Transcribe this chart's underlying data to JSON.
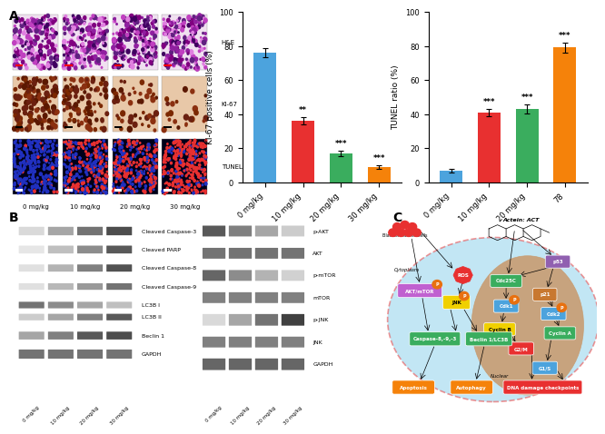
{
  "ki67_values": [
    76,
    36,
    17,
    9
  ],
  "ki67_errors": [
    2.5,
    2.0,
    1.5,
    1.2
  ],
  "ki67_labels": [
    "0 mg/kg",
    "10 mg/kg",
    "20 mg/kg",
    "30 mg/kg"
  ],
  "ki67_colors": [
    "#4ca3dd",
    "#e83030",
    "#3aad5e",
    "#f5820a"
  ],
  "ki67_ylabel": "KI-67 positive cells (%)",
  "ki67_sig": [
    "",
    "**",
    "***",
    "***"
  ],
  "ki67_ylim": [
    0,
    100
  ],
  "tunel_values": [
    7,
    41,
    43,
    79
  ],
  "tunel_errors": [
    1.2,
    2.0,
    2.5,
    2.8
  ],
  "tunel_labels": [
    "0 mg/kg",
    "10 mg/kg",
    "20 mg/kg",
    "78"
  ],
  "tunel_colors": [
    "#4ca3dd",
    "#e83030",
    "#3aad5e",
    "#f5820a"
  ],
  "tunel_ylabel": "TUNEL ratio (%)",
  "tunel_sig": [
    "",
    "***",
    "***",
    "***"
  ],
  "tunel_ylim": [
    0,
    100
  ],
  "panel_a_label": "A",
  "panel_b_label": "B",
  "panel_c_label": "C",
  "wb_left_labels": [
    "Cleaved Caspase-3",
    "Cleaved PARP",
    "Cleaved Caspase-8",
    "Cleaved Caspase-9",
    "LC3B I",
    "LC3B II",
    "Beclin 1",
    "GAPDH"
  ],
  "wb_right_labels": [
    "p-AKT",
    "AKT",
    "p-mTOR",
    "mTOR",
    "p-JNK",
    "JNK",
    "GAPDH"
  ],
  "wb_dose_labels": [
    "0 mg/kg",
    "10 mg/kg",
    "20 mg/kg",
    "30 mg/kg"
  ],
  "he_colors": [
    "#c875c4",
    "#b060b0",
    "#d0a0d0",
    "#e8d0e8"
  ],
  "ki67_img_colors": [
    "#b06040",
    "#c89070",
    "#ddb090",
    "#eeddd0"
  ],
  "tunel_colors_img": [
    [
      "#0000c0",
      "#e83030"
    ],
    [
      "#000090",
      "#e83030"
    ],
    [
      "#000060",
      "#e83030"
    ],
    [
      "#100030",
      "#e83030"
    ]
  ],
  "background_color": "#ffffff"
}
